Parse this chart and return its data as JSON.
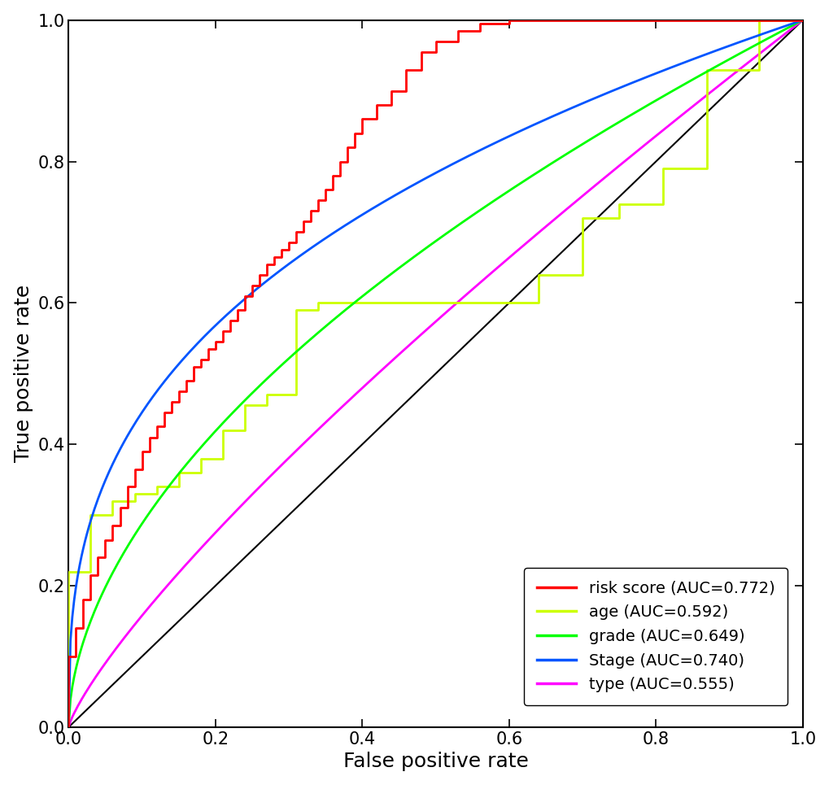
{
  "title": "",
  "xlabel": "False positive rate",
  "ylabel": "True positive rate",
  "xlim": [
    0,
    1.0
  ],
  "ylim": [
    0,
    1.0
  ],
  "xticks": [
    0.0,
    0.2,
    0.4,
    0.6,
    0.8,
    1.0
  ],
  "yticks": [
    0.0,
    0.2,
    0.4,
    0.6,
    0.8,
    1.0
  ],
  "legend_labels": [
    "risk score (AUC=0.772)",
    "age (AUC=0.592)",
    "grade (AUC=0.649)",
    "Stage (AUC=0.740)",
    "type (AUC=0.555)"
  ],
  "legend_colors": [
    "#FF0000",
    "#CCFF00",
    "#00FF00",
    "#0055FF",
    "#FF00FF"
  ],
  "diagonal_color": "#000000",
  "background_color": "#FFFFFF",
  "axis_label_fontsize": 18,
  "tick_fontsize": 15,
  "legend_fontsize": 14,
  "line_width": 2.0,
  "red_fpr": [
    0.0,
    0.0,
    0.01,
    0.01,
    0.02,
    0.02,
    0.03,
    0.03,
    0.04,
    0.04,
    0.05,
    0.05,
    0.06,
    0.06,
    0.07,
    0.07,
    0.08,
    0.08,
    0.09,
    0.09,
    0.1,
    0.1,
    0.11,
    0.11,
    0.12,
    0.12,
    0.13,
    0.13,
    0.14,
    0.14,
    0.15,
    0.15,
    0.16,
    0.16,
    0.17,
    0.17,
    0.18,
    0.18,
    0.19,
    0.19,
    0.2,
    0.2,
    0.21,
    0.21,
    0.22,
    0.22,
    0.23,
    0.23,
    0.24,
    0.24,
    0.25,
    0.25,
    0.26,
    0.26,
    0.27,
    0.27,
    0.28,
    0.28,
    0.29,
    0.29,
    0.3,
    0.3,
    0.31,
    0.31,
    0.32,
    0.32,
    0.33,
    0.33,
    0.34,
    0.34,
    0.35,
    0.35,
    0.36,
    0.36,
    0.37,
    0.37,
    0.38,
    0.38,
    0.39,
    0.39,
    0.4,
    0.4,
    0.42,
    0.42,
    0.44,
    0.44,
    0.46,
    0.46,
    0.48,
    0.48,
    0.5,
    0.5,
    0.53,
    0.53,
    0.56,
    0.56,
    0.6,
    0.6,
    0.65,
    0.65,
    0.7,
    0.7,
    0.8,
    0.8,
    0.9,
    0.9,
    1.0
  ],
  "red_tpr": [
    0.0,
    0.1,
    0.1,
    0.14,
    0.14,
    0.18,
    0.18,
    0.215,
    0.215,
    0.24,
    0.24,
    0.265,
    0.265,
    0.285,
    0.285,
    0.31,
    0.31,
    0.34,
    0.34,
    0.365,
    0.365,
    0.39,
    0.39,
    0.41,
    0.41,
    0.425,
    0.425,
    0.445,
    0.445,
    0.46,
    0.46,
    0.475,
    0.475,
    0.49,
    0.49,
    0.51,
    0.51,
    0.52,
    0.52,
    0.535,
    0.535,
    0.545,
    0.545,
    0.56,
    0.56,
    0.575,
    0.575,
    0.59,
    0.59,
    0.61,
    0.61,
    0.625,
    0.625,
    0.64,
    0.64,
    0.655,
    0.655,
    0.665,
    0.665,
    0.675,
    0.675,
    0.685,
    0.685,
    0.7,
    0.7,
    0.715,
    0.715,
    0.73,
    0.73,
    0.745,
    0.745,
    0.76,
    0.76,
    0.78,
    0.78,
    0.8,
    0.8,
    0.82,
    0.82,
    0.84,
    0.84,
    0.86,
    0.86,
    0.88,
    0.88,
    0.9,
    0.9,
    0.93,
    0.93,
    0.955,
    0.955,
    0.97,
    0.97,
    0.985,
    0.985,
    0.995,
    0.995,
    1.0,
    1.0,
    1.0,
    1.0,
    1.0,
    1.0,
    1.0,
    1.0,
    1.0,
    1.0
  ],
  "age_fpr": [
    0.0,
    0.0,
    0.03,
    0.03,
    0.06,
    0.06,
    0.09,
    0.09,
    0.12,
    0.12,
    0.15,
    0.15,
    0.18,
    0.18,
    0.21,
    0.21,
    0.24,
    0.24,
    0.27,
    0.27,
    0.31,
    0.31,
    0.34,
    0.34,
    0.38,
    0.38,
    0.41,
    0.41,
    0.45,
    0.45,
    0.49,
    0.49,
    0.54,
    0.54,
    0.59,
    0.59,
    0.64,
    0.64,
    0.7,
    0.7,
    0.75,
    0.75,
    0.81,
    0.81,
    0.87,
    0.87,
    0.94,
    0.94,
    1.0
  ],
  "age_tpr": [
    0.0,
    0.22,
    0.22,
    0.3,
    0.3,
    0.32,
    0.32,
    0.33,
    0.33,
    0.34,
    0.34,
    0.36,
    0.36,
    0.38,
    0.38,
    0.42,
    0.42,
    0.455,
    0.455,
    0.47,
    0.47,
    0.59,
    0.59,
    0.6,
    0.6,
    0.6,
    0.6,
    0.6,
    0.6,
    0.6,
    0.6,
    0.6,
    0.6,
    0.6,
    0.6,
    0.6,
    0.6,
    0.64,
    0.64,
    0.72,
    0.72,
    0.74,
    0.74,
    0.79,
    0.79,
    0.93,
    0.93,
    1.0,
    1.0
  ]
}
